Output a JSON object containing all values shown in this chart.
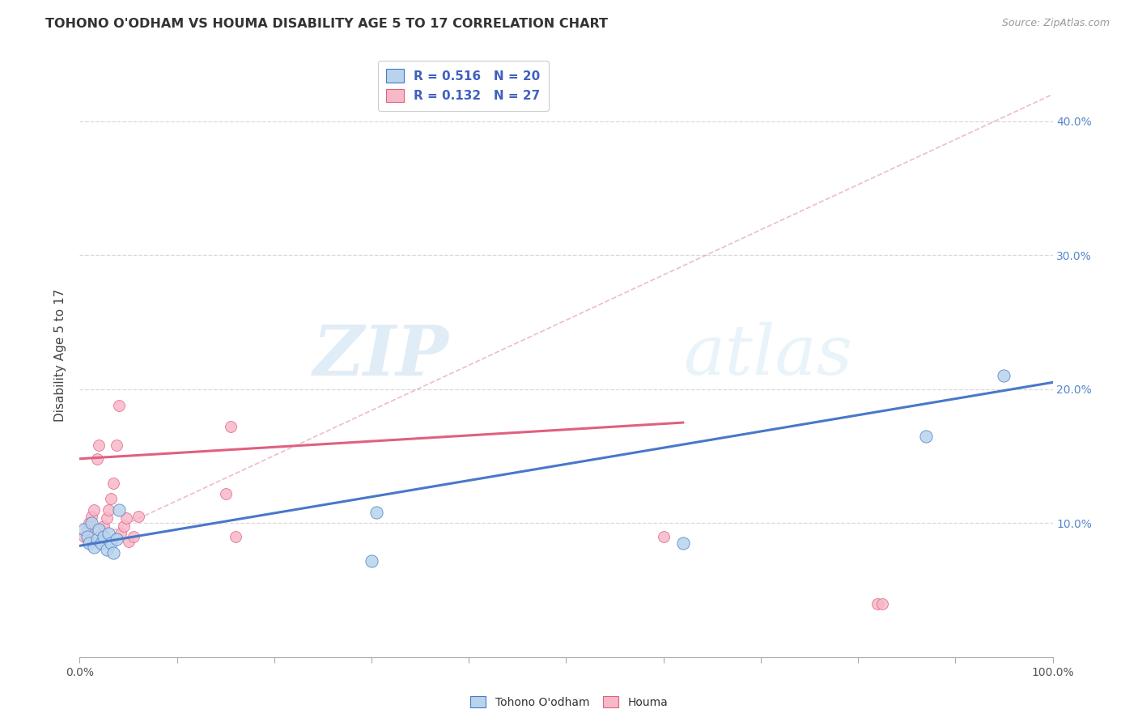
{
  "title": "TOHONO O'ODHAM VS HOUMA DISABILITY AGE 5 TO 17 CORRELATION CHART",
  "source": "Source: ZipAtlas.com",
  "ylabel": "Disability Age 5 to 17",
  "legend_label1": "Tohono O'odham",
  "legend_label2": "Houma",
  "r1": 0.516,
  "n1": 20,
  "r2": 0.132,
  "n2": 27,
  "color1": "#b8d4ec",
  "color2": "#f7b8c8",
  "line1_color": "#4878c8",
  "line2_color": "#e06080",
  "xlim": [
    0,
    1.0
  ],
  "ylim": [
    0,
    0.45
  ],
  "xticks": [
    0,
    0.1,
    0.2,
    0.3,
    0.4,
    0.5,
    0.6,
    0.7,
    0.8,
    0.9,
    1.0
  ],
  "yticks": [
    0,
    0.1,
    0.2,
    0.3,
    0.4
  ],
  "xticklabels_show": [
    "0.0%",
    "",
    "",
    "",
    "",
    "",
    "",
    "",
    "",
    "",
    "100.0%"
  ],
  "yticklabels_right": [
    "",
    "10.0%",
    "20.0%",
    "30.0%",
    "40.0%"
  ],
  "blue_x": [
    0.005,
    0.008,
    0.01,
    0.012,
    0.015,
    0.018,
    0.02,
    0.022,
    0.025,
    0.028,
    0.03,
    0.032,
    0.035,
    0.038,
    0.04,
    0.3,
    0.305,
    0.62,
    0.87,
    0.95
  ],
  "blue_y": [
    0.095,
    0.09,
    0.085,
    0.1,
    0.082,
    0.088,
    0.095,
    0.085,
    0.09,
    0.08,
    0.092,
    0.085,
    0.078,
    0.088,
    0.11,
    0.072,
    0.108,
    0.085,
    0.165,
    0.21
  ],
  "pink_x": [
    0.005,
    0.008,
    0.01,
    0.012,
    0.015,
    0.018,
    0.02,
    0.022,
    0.025,
    0.028,
    0.03,
    0.032,
    0.035,
    0.038,
    0.04,
    0.042,
    0.045,
    0.048,
    0.05,
    0.055,
    0.06,
    0.15,
    0.155,
    0.16,
    0.6,
    0.82,
    0.825
  ],
  "pink_y": [
    0.09,
    0.095,
    0.1,
    0.105,
    0.11,
    0.148,
    0.158,
    0.092,
    0.098,
    0.104,
    0.11,
    0.118,
    0.13,
    0.158,
    0.188,
    0.092,
    0.098,
    0.104,
    0.086,
    0.09,
    0.105,
    0.122,
    0.172,
    0.09,
    0.09,
    0.04,
    0.04
  ],
  "blue_line_x0": 0.0,
  "blue_line_x1": 1.0,
  "blue_line_y0": 0.083,
  "blue_line_y1": 0.205,
  "pink_line_x0": 0.0,
  "pink_line_x1": 0.62,
  "pink_line_y0": 0.148,
  "pink_line_y1": 0.175,
  "dash_line_x0": 0.0,
  "dash_line_x1": 1.0,
  "dash_line_y0": 0.083,
  "dash_line_y1": 0.42,
  "watermark_zip": "ZIP",
  "watermark_atlas": "atlas",
  "blue_marker_size": 120,
  "pink_marker_size": 100
}
